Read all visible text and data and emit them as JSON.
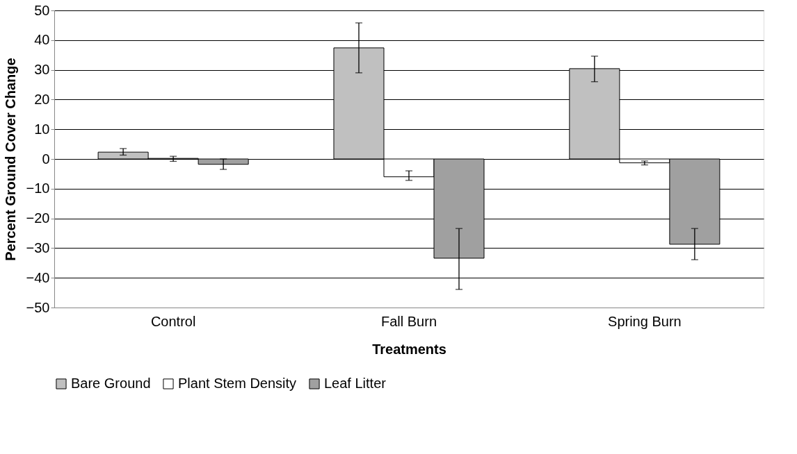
{
  "chart_data": {
    "type": "bar",
    "xlabel": "Treatments",
    "ylabel": "Percent Ground Cover Change",
    "categories": [
      "Control",
      "Fall Burn",
      "Spring Burn"
    ],
    "series": [
      {
        "name": "Bare Ground",
        "color": "#c0c0c0",
        "values": [
          2.3,
          37.4,
          30.4
        ],
        "errors": [
          [
            1.3,
            3.5
          ],
          [
            29,
            45.8
          ],
          [
            26,
            34.6
          ]
        ]
      },
      {
        "name": "Plant Stem Density",
        "color": "#ffffff",
        "values": [
          0.2,
          -6,
          -1.3
        ],
        "errors": [
          [
            -0.8,
            0.9
          ],
          [
            -7.2,
            -4
          ],
          [
            -2,
            -0.7
          ]
        ]
      },
      {
        "name": "Leaf Litter",
        "color": "#a0a0a0",
        "values": [
          -1.8,
          -33.4,
          -28.7
        ],
        "errors": [
          [
            -3.5,
            0
          ],
          [
            -43.9,
            -23.4
          ],
          [
            -33.9,
            -23.4
          ]
        ]
      }
    ],
    "ylim": [
      -50,
      50
    ],
    "yticks": [
      -50,
      -40,
      -30,
      -20,
      -10,
      0,
      10,
      20,
      30,
      40,
      50
    ],
    "grid": "y",
    "legend": "bottom"
  }
}
